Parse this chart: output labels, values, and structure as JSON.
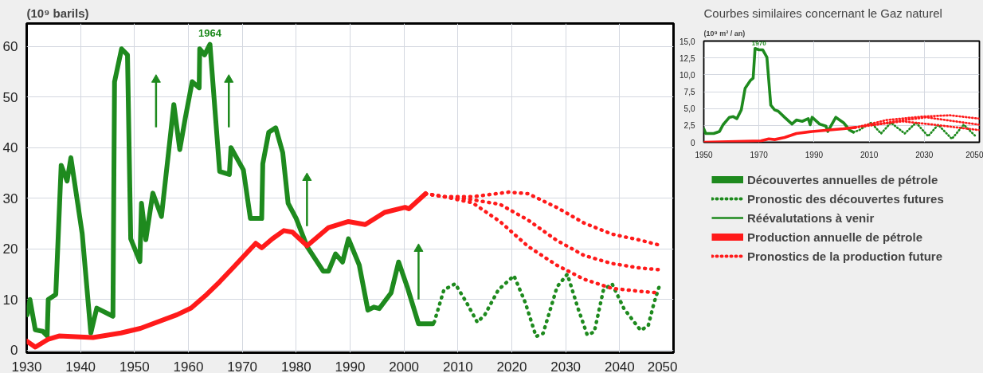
{
  "chart_data": [
    {
      "type": "line",
      "ylabel": "(10⁹ barils)",
      "xlim": [
        1930,
        2050
      ],
      "ylim": [
        -0.5,
        64.5
      ],
      "xticks": [
        1930,
        1940,
        1950,
        1960,
        1970,
        1980,
        1990,
        2000,
        2010,
        2020,
        2030,
        2040,
        2050
      ],
      "yticks": [
        0,
        10,
        20,
        30,
        40,
        50,
        60
      ],
      "grid": true,
      "legend": "right",
      "annotations": [
        {
          "text": "1964",
          "x": 1964,
          "y": 60.4
        }
      ],
      "series": [
        {
          "name": "Découvertes annuelles de pétrole",
          "color": "#1e8a1e",
          "line_style": "solid",
          "x": [
            1930.1,
            1930.6,
            1931.6,
            1933,
            1933.8,
            1934,
            1935.4,
            1936.4,
            1937.5,
            1938.2,
            1940.3,
            1941.9,
            1943,
            1946,
            1946.3,
            1947.6,
            1948.7,
            1949.3,
            1951,
            1951.3,
            1952.1,
            1953.4,
            1955,
            1957.3,
            1958.4,
            1959.4,
            1960.7,
            1962,
            1962.1,
            1963,
            1964,
            1965.8,
            1967.6,
            1967.9,
            1970.2,
            1971.5,
            1973.6,
            1973.8,
            1974.9,
            1976.2,
            1977.5,
            1978.5,
            1980,
            1982,
            1985,
            1986,
            1987.3,
            1988.6,
            1989.7,
            1991.7,
            1993.3,
            1994.4,
            1995.4,
            1997.6,
            1999,
            2000.6,
            2002.7,
            2005.3
          ],
          "values": [
            7,
            10,
            4,
            3.7,
            2.8,
            10,
            11,
            36.5,
            33.4,
            38,
            23,
            3.4,
            8.3,
            6.7,
            53,
            59.5,
            58.3,
            22,
            17.5,
            29,
            21.8,
            31,
            26.4,
            48.5,
            39.6,
            45.7,
            53,
            51.8,
            59.5,
            58.3,
            60.4,
            35.3,
            34.7,
            40,
            35.6,
            26,
            26,
            36.8,
            43,
            43.9,
            39,
            29,
            26,
            20.5,
            15.6,
            15.6,
            19,
            17.4,
            22,
            16.8,
            7.9,
            8.5,
            8.2,
            11.3,
            17.4,
            12.5,
            5.2,
            5.2
          ]
        },
        {
          "name": "Pronostic des découvertes futures",
          "color": "#1e8a1e",
          "line_style": "dotted",
          "x": [
            2005.6,
            2007.4,
            2009.5,
            2011.6,
            2013.6,
            2015,
            2017.5,
            2020.4,
            2022.5,
            2024.5,
            2025.8,
            2028.4,
            2030.3,
            2032.3,
            2034,
            2035.3,
            2037,
            2038.6,
            2040.8,
            2043.9,
            2045.3,
            2046.4,
            2047.5
          ],
          "values": [
            5.5,
            11.9,
            13.1,
            9.4,
            5.5,
            7,
            11.9,
            14.7,
            9.4,
            2.7,
            3.3,
            12.5,
            15,
            8.2,
            3,
            3.6,
            11.9,
            13.1,
            8.2,
            3.9,
            4.8,
            9.4,
            13.1
          ]
        },
        {
          "name": "Réévalutations à venir",
          "type": "line",
          "marker": "triangle",
          "line_style": "solid",
          "color": "#1e8a1e",
          "x": [
            1954,
            1954,
            null,
            1967.5,
            1967.5,
            null,
            1982,
            1982,
            null,
            2002.7,
            2002.7
          ],
          "values": [
            44,
            53.4,
            null,
            44,
            53.4,
            null,
            24.5,
            34,
            null,
            10,
            20
          ]
        },
        {
          "name": "Production annuelle de pétrole",
          "color": "#ff1a1a",
          "line_style": "solid",
          "x": [
            1930,
            1931.6,
            1933.9,
            1936,
            1942.3,
            1947.5,
            1951.1,
            1957.9,
            1960.5,
            1963.1,
            1965.8,
            1968.3,
            1972.5,
            1973.6,
            1975.6,
            1977.7,
            1979.3,
            1982,
            1986,
            1989.7,
            1992.8,
            1996.4,
            2000.2,
            2000.9,
            2004
          ],
          "values": [
            1.8,
            0.6,
            2.1,
            2.8,
            2.5,
            3.4,
            4.3,
            7,
            8.3,
            10.7,
            13.5,
            16.3,
            21.1,
            20.2,
            22,
            23.6,
            23.3,
            20.6,
            24.2,
            25.4,
            24.8,
            27.2,
            28.2,
            27.9,
            30.9
          ]
        },
        {
          "name": "Pronostics de la production future",
          "color": "#ff1a1a",
          "line_style": "dotted",
          "x": [
            2004,
            2007.4,
            2012.7,
            2019.4,
            2023,
            2028.3,
            2033.4,
            2038.6,
            2043.9,
            2047.2
          ],
          "values": [
            30.9,
            30.3,
            30.3,
            31.2,
            30.9,
            28.2,
            25.1,
            22.9,
            21.7,
            20.8
          ]
        },
        {
          "color": "#ff1a1a",
          "line_style": "dotted",
          "x": [
            2004,
            2007.4,
            2012.7,
            2017.8,
            2023,
            2028.3,
            2033.4,
            2038.6,
            2043.9,
            2047.2
          ],
          "values": [
            30.9,
            30.3,
            29.7,
            28.8,
            25.7,
            21.7,
            18.7,
            17.1,
            16.2,
            15.9
          ]
        },
        {
          "color": "#ff1a1a",
          "line_style": "dotted",
          "x": [
            2004,
            2007.4,
            2012.7,
            2017.8,
            2023,
            2028.3,
            2033.4,
            2038.6,
            2043.9,
            2047.2
          ],
          "values": [
            30.9,
            30.3,
            29.1,
            25.4,
            20.5,
            16.8,
            14,
            12.2,
            11.6,
            11.3
          ]
        }
      ]
    },
    {
      "type": "line",
      "ylabel": "(10⁹ m³ / an)",
      "xlim": [
        1950,
        2050
      ],
      "ylim": [
        0,
        15
      ],
      "xticks": [
        1950,
        1970,
        1990,
        2010,
        2030,
        2050
      ],
      "yticks": [
        0,
        {
          "value": 2.5,
          "label": "2,5"
        },
        {
          "value": 5,
          "label": "5,0"
        },
        {
          "value": 7.5,
          "label": "7,5"
        },
        {
          "value": 10,
          "label": "10,0"
        },
        {
          "value": 12.5,
          "label": "12,5"
        },
        {
          "value": 15,
          "label": "15,0"
        }
      ],
      "grid": true,
      "annotations": [
        "Courbes similaires concernant le Gaz naturel",
        {
          "text": "1970",
          "x": 1970,
          "y": 13.7
        }
      ],
      "series": [
        {
          "color": "#1e8a1e",
          "line_style": "solid",
          "x": [
            1950,
            1950.7,
            1953.6,
            1955.7,
            1957,
            1959.3,
            1960.7,
            1962,
            1963.6,
            1965,
            1967,
            1967.9,
            1968.6,
            1970,
            1971.4,
            1972.9,
            1974.3,
            1975.7,
            1977,
            1979.3,
            1982,
            1983.6,
            1985.7,
            1987.9,
            1988.6,
            1989.3,
            1992,
            1994.3,
            1995,
            1997.9,
            2000.7,
            2002.9,
            2004.3
          ],
          "values": [
            2,
            1.3,
            1.3,
            1.6,
            2.6,
            3.7,
            3.8,
            3.5,
            4.8,
            8,
            9.2,
            9.5,
            13.9,
            13.7,
            13.7,
            12.6,
            5.5,
            4.8,
            4.6,
            3.7,
            2.7,
            3.3,
            3.1,
            3.5,
            2.6,
            3.7,
            2.7,
            2.4,
            1.6,
            3.7,
            2.9,
            1.8,
            1.5
          ]
        },
        {
          "color": "#1e8a1e",
          "line_style": "dotted",
          "x": [
            2004.3,
            2006.4,
            2010.7,
            2014.3,
            2017.9,
            2022.9,
            2027,
            2031.4,
            2035,
            2040,
            2044.3,
            2048.6
          ],
          "values": [
            1.5,
            1.8,
            2.9,
            1.3,
            2.9,
            1.3,
            2.9,
            0.9,
            2.6,
            0.5,
            2.6,
            0.9
          ]
        },
        {
          "color": "#ff1a1a",
          "line_style": "solid",
          "x": [
            1950,
            1970.7,
            1973.6,
            1975.7,
            1979.3,
            1983.6,
            1989.3,
            1995,
            2000.7,
            2005
          ],
          "values": [
            0,
            0.2,
            0.5,
            0.4,
            0.7,
            1.3,
            1.6,
            1.8,
            2,
            2.2
          ]
        },
        {
          "color": "#ff1a1a",
          "line_style": "dotted",
          "x": [
            2005,
            2016.4,
            2029.3,
            2039.3,
            2050
          ],
          "values": [
            2.2,
            3.3,
            3.8,
            4,
            3.5
          ]
        },
        {
          "color": "#ff1a1a",
          "line_style": "dotted",
          "x": [
            2005,
            2019.3,
            2030.7,
            2050
          ],
          "values": [
            2.2,
            3.1,
            3.7,
            2.6
          ]
        },
        {
          "color": "#ff1a1a",
          "line_style": "dotted",
          "x": [
            2005,
            2022,
            2033.6,
            2050
          ],
          "values": [
            2.2,
            3.1,
            2.6,
            1.8
          ]
        }
      ]
    }
  ]
}
